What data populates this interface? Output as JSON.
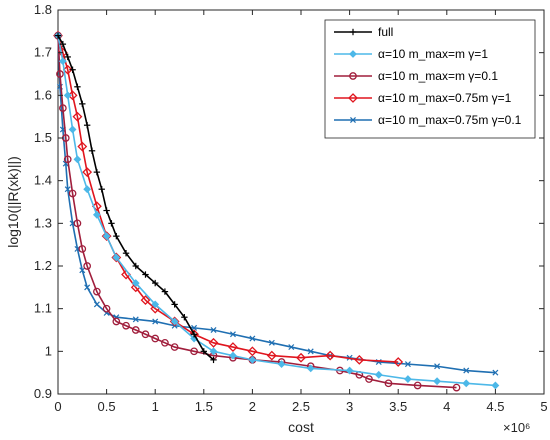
{
  "chart_data": {
    "type": "line",
    "title": "",
    "xlabel": "cost",
    "ylabel": "log10(||R(xk)||)",
    "x_multiplier_label": "×10⁶",
    "xlim": [
      0,
      5
    ],
    "ylim": [
      0.9,
      1.8
    ],
    "x_ticks": [
      "0",
      "0.5",
      "1",
      "1.5",
      "2",
      "2.5",
      "3",
      "3.5",
      "4",
      "4.5",
      "5"
    ],
    "y_ticks": [
      "0.9",
      "1",
      "1.1",
      "1.2",
      "1.3",
      "1.4",
      "1.5",
      "1.6",
      "1.7",
      "1.8"
    ],
    "grid": false,
    "legend_position": "top-right",
    "series": [
      {
        "name": "full",
        "color": "#000000",
        "marker": "plus",
        "x": [
          0,
          0.05,
          0.1,
          0.15,
          0.2,
          0.25,
          0.3,
          0.35,
          0.4,
          0.45,
          0.5,
          0.55,
          0.6,
          0.7,
          0.8,
          0.9,
          1.0,
          1.1,
          1.2,
          1.3,
          1.4,
          1.5,
          1.6
        ],
        "y": [
          1.74,
          1.72,
          1.69,
          1.66,
          1.62,
          1.58,
          1.53,
          1.47,
          1.42,
          1.38,
          1.33,
          1.3,
          1.27,
          1.23,
          1.2,
          1.18,
          1.16,
          1.14,
          1.11,
          1.08,
          1.04,
          1.0,
          0.98
        ]
      },
      {
        "name": "α=10 m_max=m γ=1",
        "color": "#4db8e8",
        "marker": "diamond",
        "x": [
          0,
          0.05,
          0.1,
          0.15,
          0.2,
          0.3,
          0.4,
          0.5,
          0.6,
          0.8,
          1.0,
          1.2,
          1.4,
          1.6,
          1.8,
          2.0,
          2.3,
          2.6,
          3.0,
          3.3,
          3.6,
          3.9,
          4.2,
          4.5
        ],
        "y": [
          1.74,
          1.68,
          1.6,
          1.52,
          1.45,
          1.38,
          1.32,
          1.27,
          1.22,
          1.16,
          1.11,
          1.07,
          1.03,
          1.0,
          0.99,
          0.98,
          0.97,
          0.96,
          0.955,
          0.945,
          0.935,
          0.93,
          0.925,
          0.92
        ]
      },
      {
        "name": "α=10 m_max=m γ=0.1",
        "color": "#a01e3c",
        "marker": "circle",
        "x": [
          0,
          0.02,
          0.05,
          0.08,
          0.1,
          0.15,
          0.2,
          0.25,
          0.3,
          0.4,
          0.5,
          0.6,
          0.7,
          0.8,
          0.9,
          1.0,
          1.1,
          1.2,
          1.4,
          1.6,
          1.8,
          2.0,
          2.3,
          2.6,
          2.9,
          3.1,
          3.2,
          3.4,
          3.7,
          4.1
        ],
        "y": [
          1.74,
          1.65,
          1.57,
          1.5,
          1.45,
          1.37,
          1.3,
          1.24,
          1.2,
          1.14,
          1.1,
          1.07,
          1.06,
          1.05,
          1.04,
          1.03,
          1.02,
          1.01,
          1.0,
          0.99,
          0.985,
          0.98,
          0.975,
          0.965,
          0.955,
          0.945,
          0.935,
          0.925,
          0.92,
          0.915
        ]
      },
      {
        "name": "α=10 m_max=0.75m γ=1",
        "color": "#e0151e",
        "marker": "diamond-open",
        "x": [
          0,
          0.05,
          0.1,
          0.15,
          0.2,
          0.25,
          0.3,
          0.4,
          0.5,
          0.6,
          0.7,
          0.8,
          0.9,
          1.0,
          1.2,
          1.4,
          1.6,
          1.8,
          2.0,
          2.2,
          2.5,
          2.8,
          3.1,
          3.5
        ],
        "y": [
          1.74,
          1.7,
          1.66,
          1.6,
          1.55,
          1.48,
          1.42,
          1.34,
          1.27,
          1.22,
          1.18,
          1.15,
          1.12,
          1.1,
          1.07,
          1.04,
          1.02,
          1.01,
          1.0,
          0.99,
          0.985,
          0.99,
          0.98,
          0.975
        ]
      },
      {
        "name": "α=10 m_max=0.75m γ=0.1",
        "color": "#1f6fb2",
        "marker": "cross",
        "x": [
          0,
          0.02,
          0.05,
          0.08,
          0.1,
          0.15,
          0.2,
          0.25,
          0.3,
          0.4,
          0.5,
          0.6,
          0.8,
          1.0,
          1.2,
          1.4,
          1.6,
          1.8,
          2.0,
          2.2,
          2.4,
          2.6,
          2.8,
          3.0,
          3.3,
          3.6,
          3.9,
          4.2,
          4.5
        ],
        "y": [
          1.74,
          1.62,
          1.52,
          1.44,
          1.38,
          1.3,
          1.24,
          1.19,
          1.15,
          1.11,
          1.09,
          1.08,
          1.075,
          1.07,
          1.06,
          1.055,
          1.05,
          1.04,
          1.03,
          1.02,
          1.01,
          1.0,
          0.99,
          0.985,
          0.975,
          0.97,
          0.965,
          0.955,
          0.95
        ]
      }
    ]
  }
}
